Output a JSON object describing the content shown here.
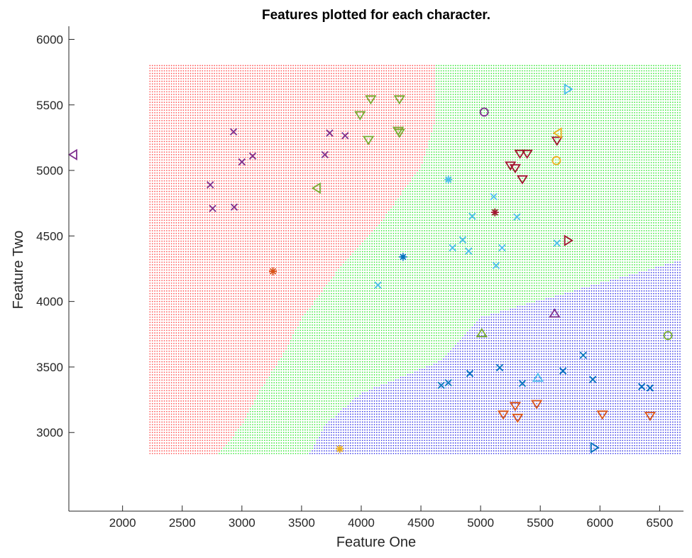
{
  "chart_data": {
    "type": "scatter",
    "title": "Features plotted for each character.",
    "xlabel": "Feature One",
    "ylabel": "Feature Two",
    "xlim": [
      1550,
      6700
    ],
    "ylim": [
      2400,
      6100
    ],
    "xticks": [
      2000,
      2500,
      3000,
      3500,
      4000,
      4500,
      5000,
      5500,
      6000,
      6500
    ],
    "yticks": [
      3000,
      3500,
      4000,
      4500,
      5000,
      5500,
      6000
    ],
    "grid": false,
    "legend": "none",
    "region_colors": {
      "red": "#ff4d4d",
      "green": "#33e633",
      "blue": "#3333e6"
    },
    "background_region_grid": {
      "x_range": [
        2230,
        6680
      ],
      "y_range": [
        2840,
        5800
      ],
      "boundaries": {
        "red_green_x_at_y": [
          [
            2840,
            2810
          ],
          [
            3060,
            3000
          ],
          [
            3320,
            3150
          ],
          [
            3600,
            3350
          ],
          [
            3870,
            3500
          ],
          [
            4270,
            3830
          ],
          [
            4650,
            4200
          ],
          [
            5030,
            4500
          ],
          [
            5380,
            4620
          ],
          [
            5800,
            4620
          ]
        ],
        "green_blue_x_at_y": [
          [
            2840,
            3570
          ],
          [
            3060,
            3700
          ],
          [
            3300,
            4000
          ],
          [
            3540,
            4650
          ],
          [
            3880,
            5000
          ],
          [
            4320,
            6700
          ]
        ]
      }
    },
    "series": [
      {
        "marker": "x",
        "color": "#7e2f8e",
        "points": [
          [
            2930,
            5295
          ],
          [
            3735,
            5285
          ],
          [
            3865,
            5265
          ],
          [
            3000,
            5065
          ],
          [
            3090,
            5110
          ],
          [
            3695,
            5120
          ],
          [
            2735,
            4890
          ],
          [
            2755,
            4710
          ],
          [
            2935,
            4720
          ]
        ]
      },
      {
        "marker": "x",
        "color": "#4dbeee",
        "points": [
          [
            5110,
            4800
          ],
          [
            4930,
            4650
          ],
          [
            5305,
            4645
          ],
          [
            4850,
            4470
          ],
          [
            4900,
            4385
          ],
          [
            4765,
            4410
          ],
          [
            5180,
            4410
          ],
          [
            5640,
            4445
          ],
          [
            5130,
            4275
          ],
          [
            4140,
            4125
          ]
        ]
      },
      {
        "marker": "x",
        "color": "#0072bd",
        "points": [
          [
            5860,
            3590
          ],
          [
            5690,
            3470
          ],
          [
            4910,
            3450
          ],
          [
            5160,
            3495
          ],
          [
            5350,
            3375
          ],
          [
            5940,
            3405
          ],
          [
            4670,
            3360
          ],
          [
            4730,
            3380
          ],
          [
            6350,
            3350
          ],
          [
            6420,
            3340
          ]
        ]
      },
      {
        "marker": "triangle-down",
        "color": "#77ac30",
        "points": [
          [
            4080,
            5545
          ],
          [
            4320,
            5545
          ],
          [
            3990,
            5425
          ],
          [
            4310,
            5305
          ],
          [
            4320,
            5290
          ],
          [
            4060,
            5235
          ]
        ]
      },
      {
        "marker": "triangle-down",
        "color": "#a2142f",
        "points": [
          [
            5640,
            5230
          ],
          [
            5330,
            5130
          ],
          [
            5390,
            5130
          ],
          [
            5250,
            5040
          ],
          [
            5290,
            5020
          ],
          [
            5350,
            4935
          ]
        ]
      },
      {
        "marker": "triangle-down",
        "color": "#d95319",
        "points": [
          [
            5290,
            3205
          ],
          [
            5470,
            3220
          ],
          [
            5190,
            3140
          ],
          [
            5310,
            3115
          ],
          [
            6020,
            3140
          ],
          [
            6420,
            3130
          ]
        ]
      },
      {
        "marker": "triangle-left",
        "color": "#7e2f8e",
        "points": [
          [
            1590,
            5120
          ]
        ]
      },
      {
        "marker": "triangle-left",
        "color": "#77ac30",
        "points": [
          [
            3630,
            4865
          ]
        ]
      },
      {
        "marker": "triangle-left",
        "color": "#edb120",
        "points": [
          [
            5650,
            5285
          ]
        ]
      },
      {
        "marker": "triangle-right",
        "color": "#4dbeee",
        "points": [
          [
            5730,
            5620
          ]
        ]
      },
      {
        "marker": "triangle-right",
        "color": "#a2142f",
        "points": [
          [
            5730,
            4465
          ]
        ]
      },
      {
        "marker": "triangle-right",
        "color": "#0072bd",
        "points": [
          [
            5950,
            2885
          ]
        ]
      },
      {
        "marker": "triangle-up",
        "color": "#7e2f8e",
        "points": [
          [
            5620,
            3905
          ]
        ]
      },
      {
        "marker": "triangle-up",
        "color": "#77ac30",
        "points": [
          [
            5010,
            3755
          ]
        ]
      },
      {
        "marker": "triangle-up",
        "color": "#4dbeee",
        "points": [
          [
            5480,
            3415
          ]
        ]
      },
      {
        "marker": "circle",
        "color": "#7e2f8e",
        "points": [
          [
            5030,
            5445
          ]
        ]
      },
      {
        "marker": "circle",
        "color": "#edb120",
        "points": [
          [
            5635,
            5075
          ]
        ]
      },
      {
        "marker": "circle",
        "color": "#77ac30",
        "points": [
          [
            6570,
            3740
          ]
        ]
      },
      {
        "marker": "star",
        "color": "#4dbeee",
        "points": [
          [
            4730,
            4930
          ]
        ]
      },
      {
        "marker": "star",
        "color": "#a2142f",
        "points": [
          [
            5120,
            4680
          ]
        ]
      },
      {
        "marker": "star",
        "color": "#0072bd",
        "points": [
          [
            4350,
            4340
          ]
        ]
      },
      {
        "marker": "star",
        "color": "#d95319",
        "points": [
          [
            3260,
            4230
          ]
        ]
      },
      {
        "marker": "star",
        "color": "#edb120",
        "points": [
          [
            3820,
            2875
          ]
        ]
      }
    ]
  }
}
